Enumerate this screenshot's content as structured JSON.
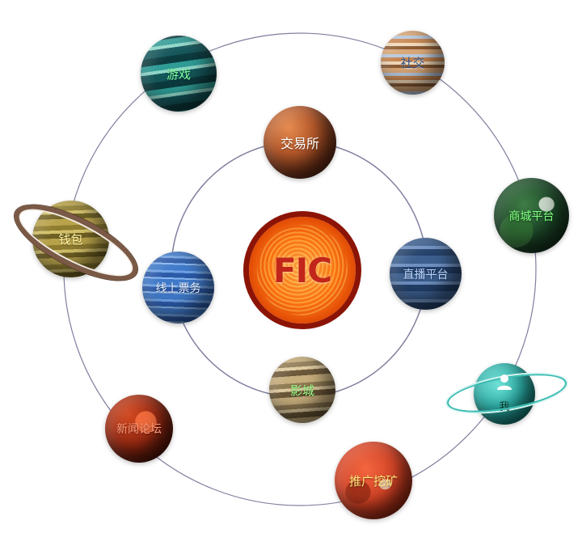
{
  "center": {
    "label": "FIC"
  },
  "planets": {
    "youxi": {
      "label": "游戏",
      "color": "#7dff9e"
    },
    "shejiao": {
      "label": "社交",
      "color": "#3b5a8a"
    },
    "jiaoyi": {
      "label": "交易所",
      "color": "#ffffff"
    },
    "shangcheng": {
      "label": "商城平台",
      "color": "#7dff7d"
    },
    "qianbao": {
      "label": "钱包",
      "color": "#fff2a0"
    },
    "piaowu": {
      "label": "线上票务",
      "color": "#e8f0ff"
    },
    "zhibo": {
      "label": "直播平台",
      "color": "#b8d4ff"
    },
    "yingcheng": {
      "label": "影城",
      "color": "#9cff8a"
    },
    "wo": {
      "label": "我",
      "color": "#0c3a2a"
    },
    "xinwen": {
      "label": "新闻论坛",
      "color": "#ff9a7a"
    },
    "tuiguang": {
      "label": "推广挖矿",
      "color": "#ffe67a"
    }
  },
  "icons": {
    "user": "user-icon"
  },
  "colors": {
    "orbit": "#7f7f9f"
  }
}
